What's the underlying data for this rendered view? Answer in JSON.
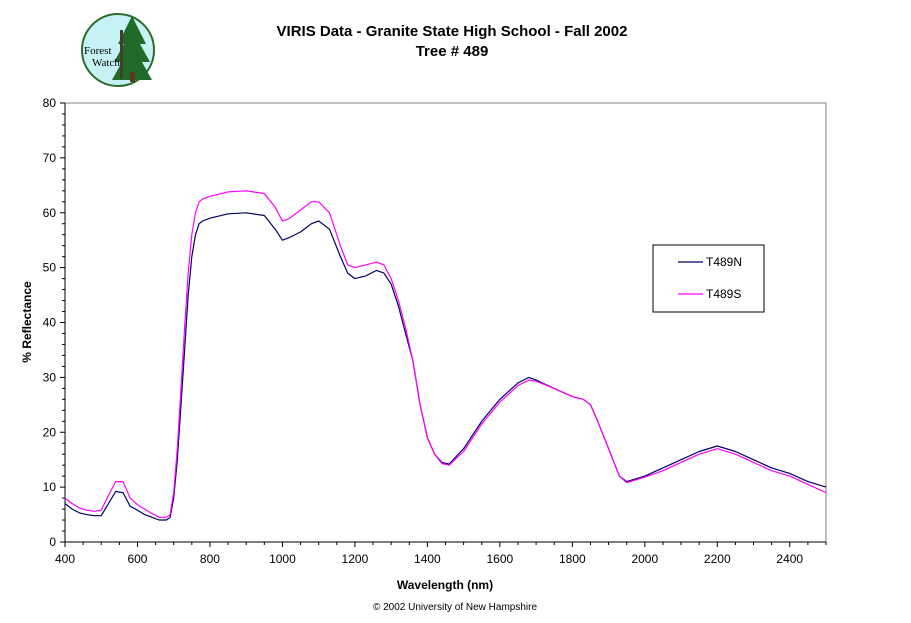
{
  "logo": {
    "line1": "Forest",
    "line2": "Watch"
  },
  "copyright": "© 2002 University of New Hampshire",
  "chart_data": {
    "type": "line",
    "title": "VIRIS Data - Granite State High School - Fall 2002",
    "subtitle": "Tree # 489",
    "xlabel": "Wavelength (nm)",
    "ylabel": "% Reflectance",
    "xlim": [
      400,
      2500
    ],
    "ylim": [
      0,
      80
    ],
    "xticks": [
      400,
      600,
      800,
      1000,
      1200,
      1400,
      1600,
      1800,
      2000,
      2200,
      2400
    ],
    "yticks": [
      0,
      10,
      20,
      30,
      40,
      50,
      60,
      70,
      80
    ],
    "grid": false,
    "legend_position": "right",
    "series": [
      {
        "name": "T489N",
        "color": "#000066",
        "x": [
          400,
          420,
          440,
          460,
          480,
          500,
          520,
          540,
          560,
          580,
          600,
          620,
          640,
          660,
          680,
          690,
          700,
          710,
          720,
          730,
          740,
          750,
          760,
          770,
          780,
          800,
          850,
          900,
          950,
          980,
          1000,
          1020,
          1050,
          1080,
          1100,
          1130,
          1160,
          1180,
          1200,
          1230,
          1260,
          1280,
          1300,
          1320,
          1340,
          1360,
          1380,
          1400,
          1420,
          1440,
          1460,
          1500,
          1550,
          1600,
          1650,
          1680,
          1700,
          1750,
          1800,
          1830,
          1850,
          1870,
          1900,
          1930,
          1950,
          2000,
          2050,
          2100,
          2150,
          2200,
          2250,
          2300,
          2350,
          2400,
          2450,
          2500
        ],
        "y": [
          7,
          6,
          5.3,
          5,
          4.8,
          4.8,
          7,
          9.2,
          9,
          6.5,
          5.8,
          5,
          4.5,
          4,
          4,
          4.5,
          8,
          15,
          25,
          35,
          45,
          52,
          56,
          58,
          58.5,
          59,
          59.8,
          60,
          59.5,
          57,
          55,
          55.5,
          56.5,
          58,
          58.5,
          57,
          52,
          49,
          48,
          48.5,
          49.5,
          49,
          47,
          43,
          38,
          33,
          25,
          19,
          16,
          14.5,
          14.2,
          17,
          22,
          26,
          29,
          30,
          29.5,
          28,
          26.5,
          26,
          25,
          22,
          17,
          12,
          11,
          12,
          13.5,
          15,
          16.5,
          17.5,
          16.5,
          15,
          13.5,
          12.5,
          11,
          10
        ]
      },
      {
        "name": "T489S",
        "color": "#ff00ff",
        "x": [
          400,
          420,
          440,
          460,
          480,
          500,
          520,
          540,
          560,
          580,
          600,
          620,
          640,
          660,
          680,
          690,
          700,
          710,
          720,
          730,
          740,
          750,
          760,
          770,
          780,
          800,
          850,
          900,
          950,
          980,
          1000,
          1020,
          1050,
          1080,
          1100,
          1130,
          1160,
          1180,
          1200,
          1230,
          1260,
          1280,
          1300,
          1320,
          1340,
          1360,
          1380,
          1400,
          1420,
          1440,
          1460,
          1500,
          1550,
          1600,
          1650,
          1680,
          1700,
          1750,
          1800,
          1830,
          1850,
          1870,
          1900,
          1930,
          1950,
          2000,
          2050,
          2100,
          2150,
          2200,
          2250,
          2300,
          2350,
          2400,
          2450,
          2500
        ],
        "y": [
          8,
          7,
          6.2,
          5.8,
          5.6,
          5.8,
          8.5,
          11,
          11,
          8,
          6.8,
          6,
          5.2,
          4.5,
          4.5,
          5,
          9,
          17,
          28,
          39,
          49,
          56,
          60,
          62,
          62.5,
          63,
          63.8,
          64,
          63.5,
          61,
          58.5,
          59,
          60.5,
          62,
          62,
          60,
          54,
          50.5,
          50,
          50.5,
          51,
          50.5,
          48,
          44,
          39,
          33,
          25,
          19,
          16,
          14.3,
          14,
          16.5,
          21.5,
          25.5,
          28.5,
          29.5,
          29.3,
          28,
          26.5,
          26,
          25,
          22,
          17,
          12,
          10.8,
          11.8,
          13,
          14.5,
          16,
          17,
          16,
          14.5,
          13,
          12,
          10.5,
          9
        ]
      }
    ]
  }
}
